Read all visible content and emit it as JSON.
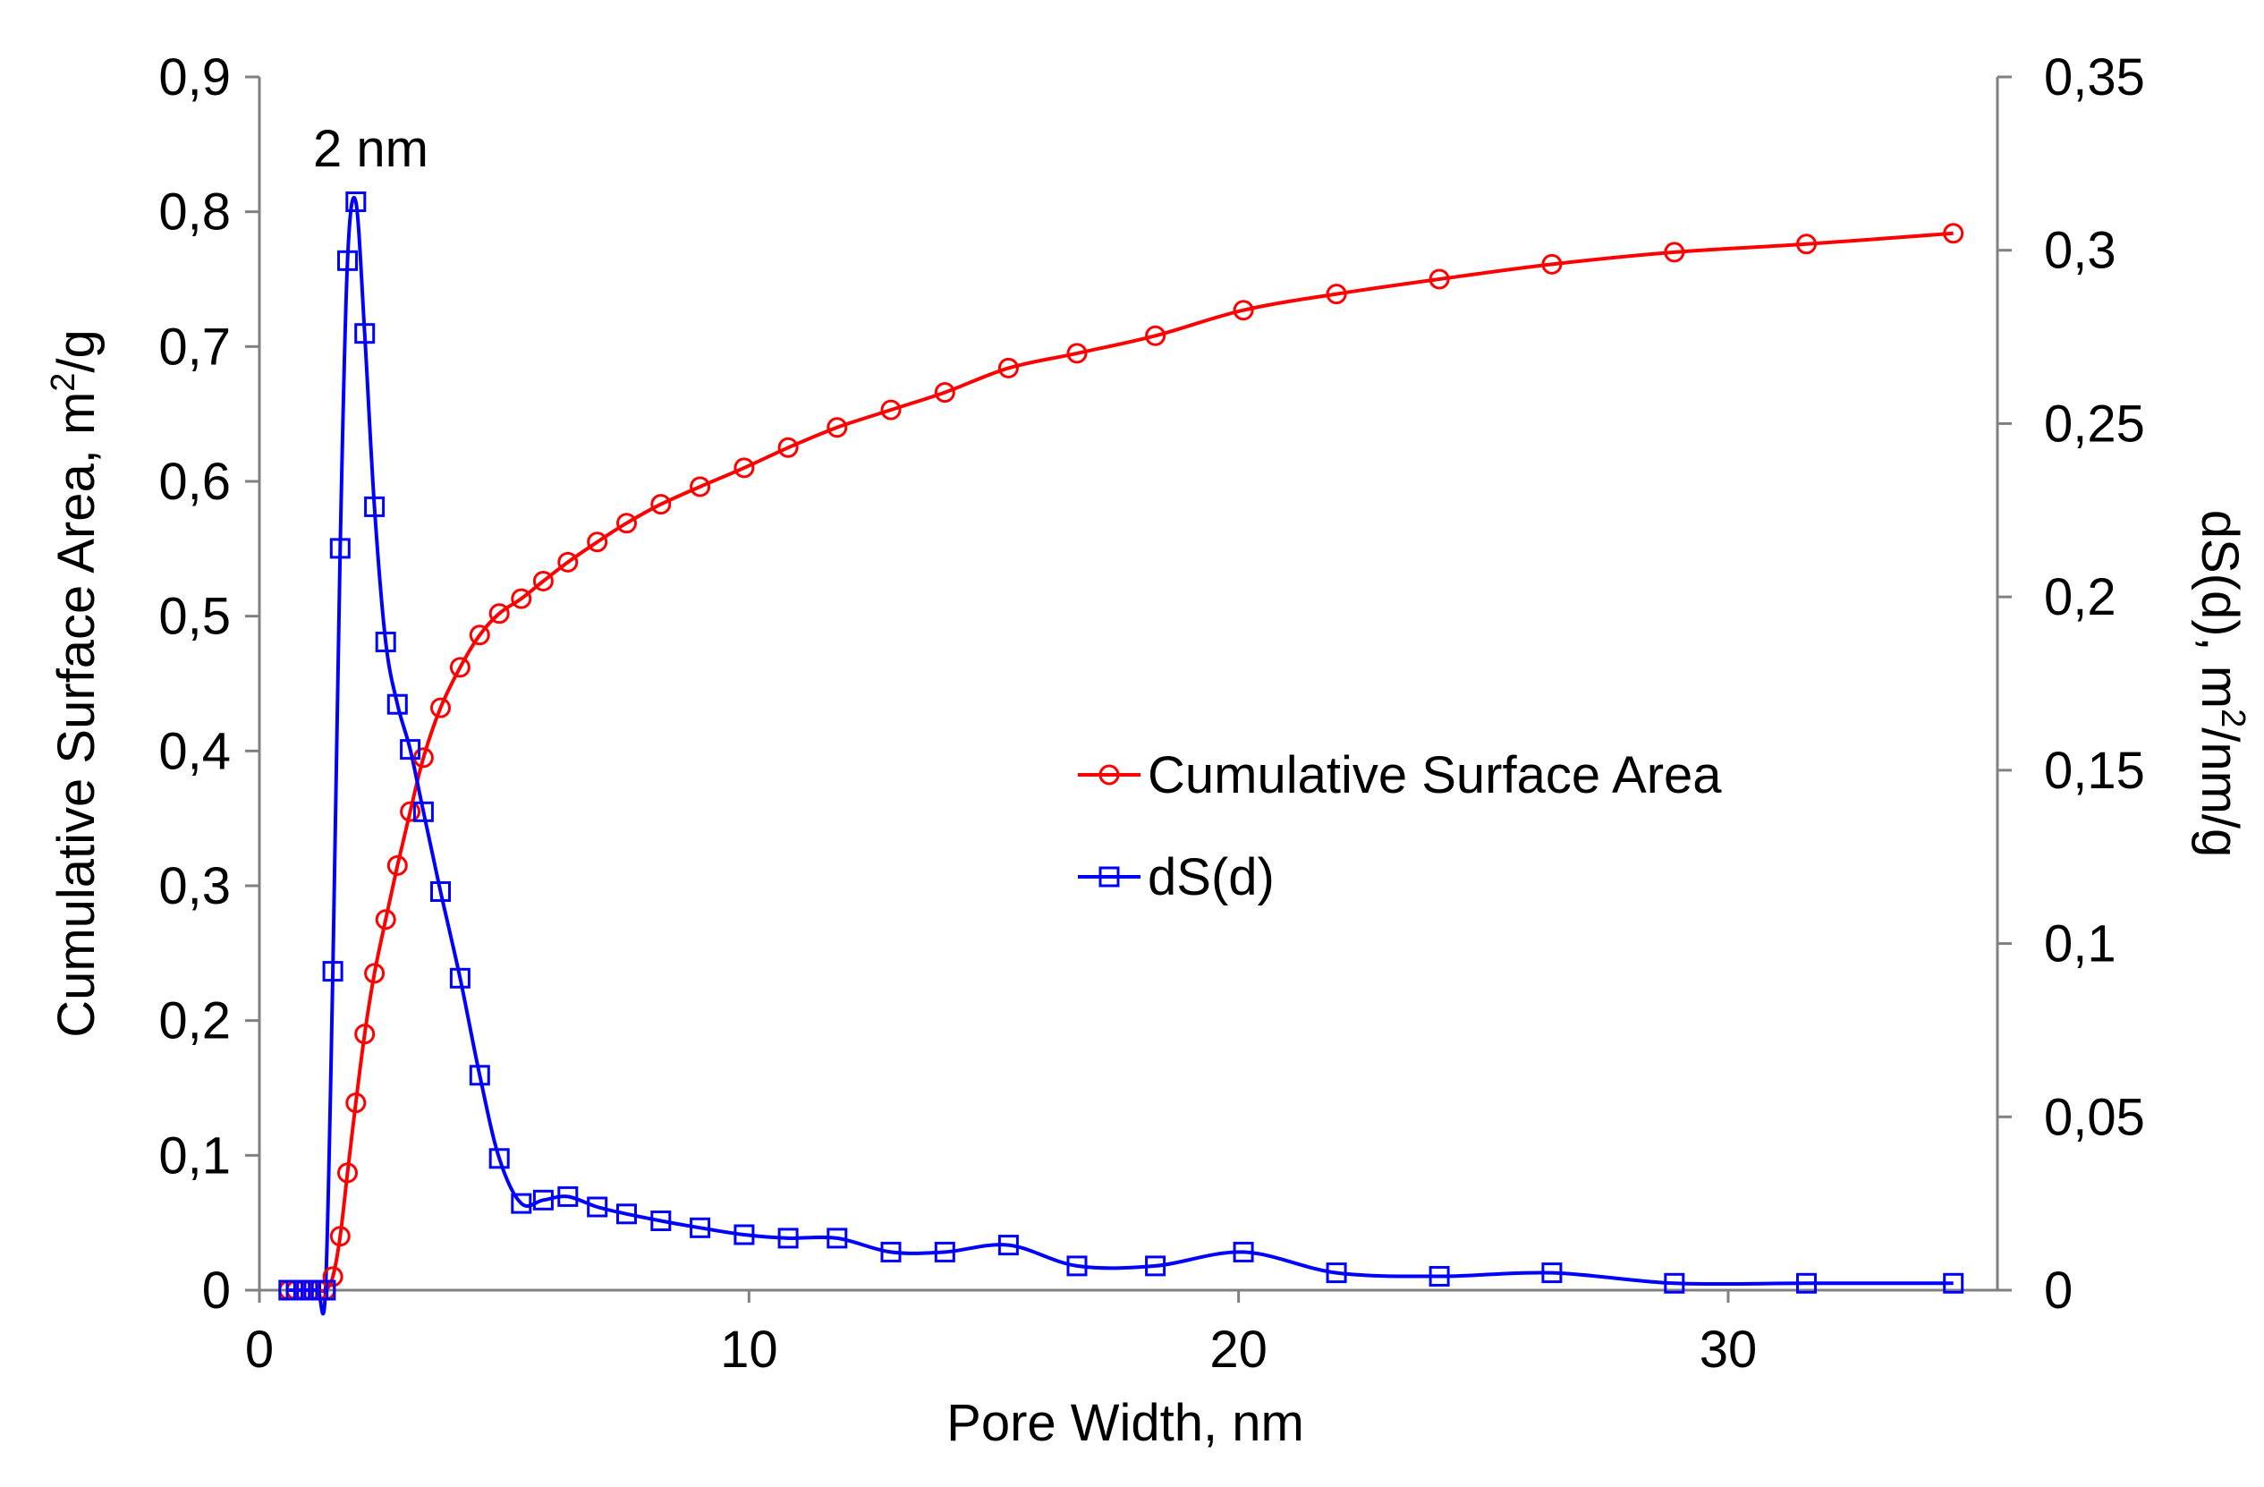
{
  "chart_data": {
    "type": "line",
    "title": "",
    "annotation": "2 nm",
    "xlabel": "Pore Width, nm",
    "ylabel_left": "Cumulative Surface Area, m",
    "ylabel_left_sup": "2",
    "ylabel_left_suffix": "/g",
    "ylabel_right": "dS(d), m",
    "ylabel_right_sup": "2",
    "ylabel_right_suffix": "/nm/g",
    "xlim": [
      0,
      35.5
    ],
    "ylim_left": [
      0,
      0.9
    ],
    "ylim_right": [
      0,
      0.35
    ],
    "x_ticks": [
      0,
      10,
      20,
      30
    ],
    "x_tick_labels": [
      "0",
      "10",
      "20",
      "30"
    ],
    "y_left_ticks": [
      0,
      0.1,
      0.2,
      0.3,
      0.4,
      0.5,
      0.6,
      0.7,
      0.8,
      0.9
    ],
    "y_left_tick_labels": [
      "0",
      "0,1",
      "0,2",
      "0,3",
      "0,4",
      "0,5",
      "0,6",
      "0,7",
      "0,8",
      "0,9"
    ],
    "y_right_ticks": [
      0,
      0.05,
      0.1,
      0.15,
      0.2,
      0.25,
      0.3,
      0.35
    ],
    "y_right_tick_labels": [
      "0",
      "0,05",
      "0,1",
      "0,15",
      "0,2",
      "0,25",
      "0,3",
      "0,35"
    ],
    "grid": false,
    "legend_position": "center-right",
    "series": [
      {
        "name": "Cumulative Surface Area",
        "axis": "left",
        "color": "#ff0000",
        "marker": "circle",
        "x": [
          0.6,
          0.75,
          0.9,
          1.05,
          1.2,
          1.35,
          1.5,
          1.65,
          1.8,
          1.97,
          2.15,
          2.35,
          2.58,
          2.82,
          3.08,
          3.35,
          3.7,
          4.1,
          4.5,
          4.9,
          5.35,
          5.8,
          6.3,
          6.9,
          7.5,
          8.2,
          9.0,
          9.9,
          10.8,
          11.8,
          12.9,
          14.0,
          15.3,
          16.7,
          18.3,
          20.1,
          22.0,
          24.1,
          26.4,
          28.9,
          31.6,
          34.6
        ],
        "values": [
          0.0,
          0.0,
          0.0,
          0.0,
          0.0,
          0.0,
          0.01,
          0.04,
          0.087,
          0.139,
          0.19,
          0.235,
          0.275,
          0.315,
          0.355,
          0.395,
          0.432,
          0.462,
          0.486,
          0.502,
          0.513,
          0.526,
          0.54,
          0.555,
          0.569,
          0.583,
          0.596,
          0.61,
          0.625,
          0.64,
          0.653,
          0.666,
          0.684,
          0.695,
          0.708,
          0.727,
          0.739,
          0.75,
          0.761,
          0.77,
          0.776,
          0.784
        ]
      },
      {
        "name": "dS(d)",
        "axis": "right",
        "color": "#0000ff",
        "marker": "square",
        "x": [
          0.6,
          0.75,
          0.9,
          1.05,
          1.2,
          1.35,
          1.5,
          1.65,
          1.8,
          1.97,
          2.15,
          2.35,
          2.58,
          2.82,
          3.08,
          3.35,
          3.7,
          4.1,
          4.5,
          4.9,
          5.35,
          5.8,
          6.3,
          6.9,
          7.5,
          8.2,
          9.0,
          9.9,
          10.8,
          11.8,
          12.9,
          14.0,
          15.3,
          16.7,
          18.3,
          20.1,
          22.0,
          24.1,
          26.4,
          28.9,
          31.6,
          34.6
        ],
        "values": [
          0.0,
          0.0,
          0.0,
          0.0,
          0.0,
          0.0,
          0.092,
          0.214,
          0.297,
          0.314,
          0.276,
          0.226,
          0.187,
          0.169,
          0.156,
          0.138,
          0.115,
          0.09,
          0.062,
          0.038,
          0.025,
          0.026,
          0.027,
          0.024,
          0.022,
          0.02,
          0.018,
          0.016,
          0.015,
          0.015,
          0.011,
          0.011,
          0.013,
          0.007,
          0.007,
          0.011,
          0.005,
          0.004,
          0.005,
          0.002,
          0.002,
          0.002
        ]
      }
    ]
  }
}
